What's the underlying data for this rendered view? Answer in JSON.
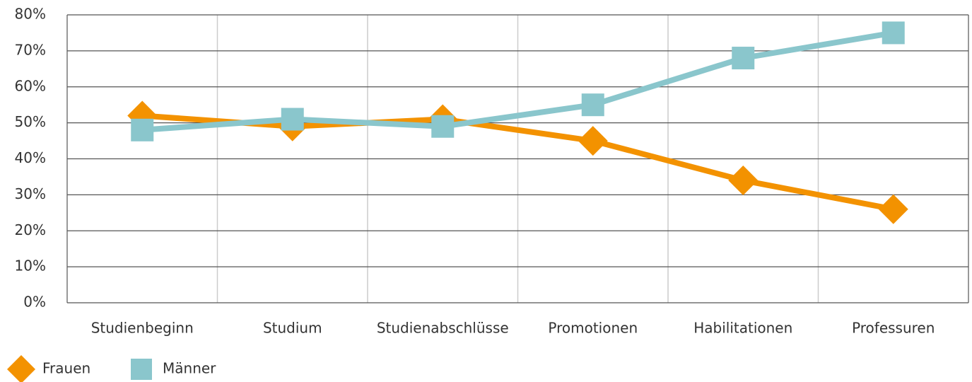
{
  "chart_data": {
    "type": "line",
    "categories": [
      "Studienbeginn",
      "Studium",
      "Studienabschlüsse",
      "Promotionen",
      "Habilitationen",
      "Professuren"
    ],
    "series": [
      {
        "name": "Frauen",
        "color": "#f39200",
        "marker": "diamond",
        "values": [
          52,
          49,
          51,
          45,
          34,
          26
        ]
      },
      {
        "name": "Männer",
        "color": "#8ac6cc",
        "marker": "square",
        "values": [
          48,
          51,
          49,
          55,
          68,
          75
        ]
      }
    ],
    "ylim": [
      0,
      80
    ],
    "yticks": [
      {
        "value": 0,
        "label": "0%"
      },
      {
        "value": 10,
        "label": "10%"
      },
      {
        "value": 20,
        "label": "20%"
      },
      {
        "value": 30,
        "label": "30%"
      },
      {
        "value": 40,
        "label": "40%"
      },
      {
        "value": 50,
        "label": "50%"
      },
      {
        "value": 60,
        "label": "60%"
      },
      {
        "value": 70,
        "label": "70%"
      },
      {
        "value": 80,
        "label": "80%"
      }
    ],
    "grid": true,
    "legend": "bottom-left"
  }
}
